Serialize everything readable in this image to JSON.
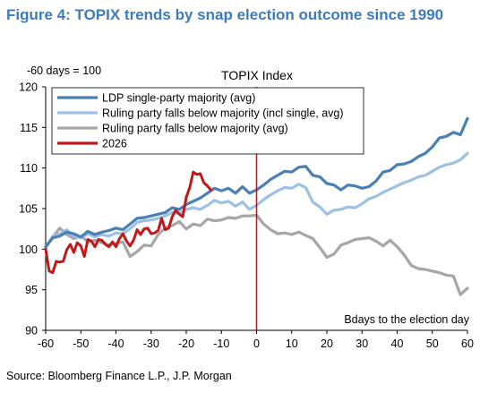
{
  "figure_title": "Figure 4: TOPIX trends by snap election outcome since 1990",
  "source": "Source: Bloomberg Finance L.P., J.P. Morgan",
  "colors": {
    "ldp": "#4a7fb5",
    "ruling_incl": "#9cc1e3",
    "ruling_avg": "#a6a6a6",
    "y2026": "#c0191b",
    "election_line": "#a41e22"
  },
  "chart_data": {
    "type": "line",
    "title": "TOPIX Index",
    "ylabel": "-60 days = 100",
    "xlabel": "Bdays to the election day",
    "xlim": [
      -60,
      60
    ],
    "ylim": [
      90,
      120
    ],
    "xticks": [
      -60,
      -50,
      -40,
      -30,
      -20,
      -10,
      0,
      10,
      20,
      30,
      40,
      50,
      60
    ],
    "yticks": [
      90,
      95,
      100,
      105,
      110,
      115,
      120
    ],
    "election_day": 0,
    "legend_position": "top-left",
    "series": [
      {
        "name": "LDP single-party majority (avg)",
        "color_key": "ldp",
        "x": [
          -60,
          -58,
          -56,
          -54,
          -52,
          -50,
          -48,
          -46,
          -44,
          -42,
          -40,
          -38,
          -36,
          -34,
          -32,
          -30,
          -28,
          -26,
          -24,
          -22,
          -20,
          -18,
          -16,
          -14,
          -12,
          -10,
          -8,
          -6,
          -4,
          -2,
          0,
          2,
          4,
          6,
          8,
          10,
          12,
          14,
          16,
          18,
          20,
          22,
          24,
          26,
          28,
          30,
          32,
          34,
          36,
          38,
          40,
          42,
          44,
          46,
          48,
          50,
          52,
          54,
          56,
          58,
          60
        ],
        "y": [
          100.3,
          101.4,
          101.6,
          102.1,
          101.9,
          101.5,
          102.2,
          101.8,
          102.1,
          102.3,
          102.6,
          102.4,
          103.1,
          103.8,
          103.9,
          104.1,
          104.3,
          104.5,
          105.1,
          104.9,
          105.5,
          105.9,
          106.3,
          106.9,
          107.5,
          107.2,
          107.5,
          106.9,
          107.7,
          106.9,
          107.3,
          107.9,
          108.6,
          109.1,
          109.6,
          109.5,
          110.1,
          110.2,
          109.1,
          108.9,
          108.1,
          107.9,
          107.3,
          107.9,
          107.8,
          107.5,
          107.7,
          108.4,
          109.5,
          109.7,
          110.4,
          110.5,
          110.8,
          111.4,
          111.8,
          112.6,
          113.7,
          113.9,
          114.4,
          114.1,
          116.1
        ]
      },
      {
        "name": "Ruling party falls below majority (incl single, avg)",
        "color_key": "ruling_incl",
        "x": [
          -60,
          -58,
          -56,
          -54,
          -52,
          -50,
          -48,
          -46,
          -44,
          -42,
          -40,
          -38,
          -36,
          -34,
          -32,
          -30,
          -28,
          -26,
          -24,
          -22,
          -20,
          -18,
          -16,
          -14,
          -12,
          -10,
          -8,
          -6,
          -4,
          -2,
          0,
          2,
          4,
          6,
          8,
          10,
          12,
          14,
          16,
          18,
          20,
          22,
          24,
          26,
          28,
          30,
          32,
          34,
          36,
          38,
          40,
          42,
          44,
          46,
          48,
          50,
          52,
          54,
          56,
          58,
          60
        ],
        "y": [
          100.1,
          101.6,
          101.9,
          102.4,
          101.6,
          101.4,
          101.9,
          101.5,
          101.8,
          101.6,
          102.0,
          101.9,
          102.5,
          103.3,
          103.5,
          103.6,
          103.8,
          104.1,
          104.5,
          104.4,
          104.9,
          105.1,
          104.9,
          105.4,
          106.0,
          105.7,
          105.9,
          105.3,
          105.8,
          104.9,
          105.4,
          106.1,
          106.7,
          107.2,
          107.6,
          107.5,
          108.0,
          107.6,
          105.8,
          105.2,
          104.3,
          104.8,
          104.9,
          105.2,
          105.1,
          105.6,
          106.2,
          106.5,
          107.0,
          107.4,
          107.8,
          108.2,
          108.5,
          108.9,
          109.1,
          109.6,
          110.1,
          110.4,
          110.6,
          111.0,
          111.8
        ]
      },
      {
        "name": "Ruling party falls below majority (avg)",
        "color_key": "ruling_avg",
        "x": [
          -60,
          -58,
          -56,
          -54,
          -52,
          -50,
          -48,
          -46,
          -44,
          -42,
          -40,
          -38,
          -36,
          -34,
          -32,
          -30,
          -28,
          -26,
          -24,
          -22,
          -20,
          -18,
          -16,
          -14,
          -12,
          -10,
          -8,
          -6,
          -4,
          -2,
          0,
          2,
          4,
          6,
          8,
          10,
          12,
          14,
          16,
          18,
          20,
          22,
          24,
          26,
          28,
          30,
          32,
          34,
          36,
          38,
          40,
          42,
          44,
          46,
          48,
          50,
          52,
          54,
          56,
          58,
          60
        ],
        "y": [
          100.2,
          101.5,
          102.6,
          101.8,
          101.3,
          101.6,
          100.9,
          101.1,
          100.8,
          100.5,
          100.7,
          100.9,
          99.1,
          99.7,
          100.5,
          100.4,
          101.8,
          102.6,
          102.9,
          103.4,
          102.5,
          103.1,
          102.9,
          103.7,
          103.5,
          103.6,
          103.9,
          103.8,
          104.1,
          104.1,
          104.2,
          103.1,
          102.4,
          101.9,
          102.0,
          101.8,
          102.1,
          101.7,
          101.3,
          100.2,
          99.0,
          99.4,
          100.5,
          100.8,
          101.2,
          101.3,
          101.4,
          101.0,
          100.4,
          101.1,
          100.3,
          99.3,
          98.0,
          97.6,
          97.5,
          97.3,
          97.1,
          96.8,
          96.7,
          94.4,
          95.2
        ]
      },
      {
        "name": "2026",
        "color_key": "y2026",
        "x": [
          -60,
          -59,
          -58,
          -57,
          -56,
          -55,
          -54,
          -53,
          -52,
          -51,
          -50,
          -49,
          -48,
          -47,
          -46,
          -45,
          -44,
          -43,
          -42,
          -41,
          -40,
          -39,
          -38,
          -37,
          -36,
          -35,
          -34,
          -33,
          -32,
          -31,
          -30,
          -29,
          -28,
          -27,
          -26,
          -25,
          -24,
          -23,
          -22,
          -21,
          -20,
          -19,
          -18,
          -17,
          -16,
          -15,
          -14,
          -13
        ],
        "y": [
          100.0,
          97.3,
          97.1,
          98.5,
          98.4,
          98.5,
          99.9,
          100.6,
          99.6,
          100.8,
          100.4,
          99.1,
          101.2,
          101.0,
          100.3,
          101.2,
          101.1,
          100.6,
          100.3,
          100.9,
          100.3,
          101.3,
          101.9,
          101.0,
          100.4,
          101.1,
          102.4,
          101.8,
          102.5,
          102.6,
          101.9,
          102.0,
          102.3,
          103.8,
          102.4,
          102.6,
          104.0,
          104.8,
          104.3,
          104.0,
          106.4,
          107.6,
          109.5,
          109.2,
          109.3,
          108.2,
          107.8,
          107.3
        ]
      }
    ]
  }
}
